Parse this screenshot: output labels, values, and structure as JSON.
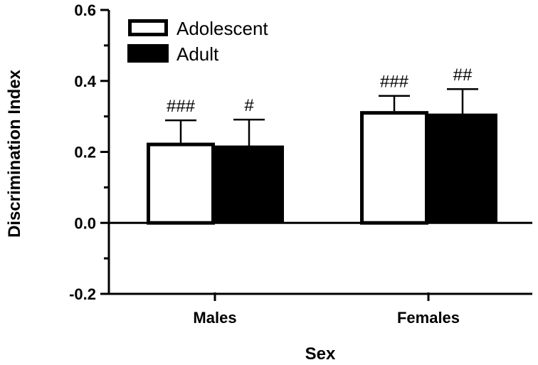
{
  "chart_data": {
    "type": "bar",
    "title": "",
    "xlabel": "Sex",
    "ylabel": "Discrimination Index",
    "ylim": [
      -0.2,
      0.6
    ],
    "yticks": [
      -0.2,
      0.0,
      0.2,
      0.4,
      0.6
    ],
    "ytick_labels": [
      "-0.2",
      "0.0",
      "0.2",
      "0.4",
      "0.6"
    ],
    "categories": [
      "Males",
      "Females"
    ],
    "legend_position": "top-left",
    "series": [
      {
        "name": "Adolescent",
        "fill": "#ffffff",
        "values": [
          0.226,
          0.315
        ],
        "errors": [
          0.063,
          0.043
        ],
        "significance": [
          "###",
          "###"
        ]
      },
      {
        "name": "Adult",
        "fill": "#000000",
        "values": [
          0.216,
          0.306
        ],
        "errors": [
          0.075,
          0.071
        ],
        "significance": [
          "#",
          "##"
        ]
      }
    ]
  }
}
